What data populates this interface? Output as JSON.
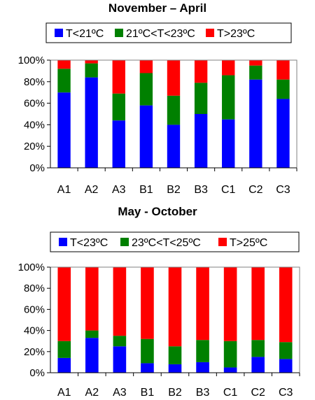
{
  "colors": {
    "low": "#0000ff",
    "mid": "#008000",
    "high": "#ff0000"
  },
  "chart_data": [
    {
      "type": "bar",
      "stacked": true,
      "title": "November – April",
      "categories": [
        "A1",
        "A2",
        "A3",
        "B1",
        "B2",
        "B3",
        "C1",
        "C2",
        "C3"
      ],
      "ylim": [
        0,
        100
      ],
      "yticks": [
        "0%",
        "20%",
        "40%",
        "60%",
        "80%",
        "100%"
      ],
      "legend_position": "top",
      "series": [
        {
          "name": "T<21ºC",
          "values": [
            70,
            84,
            44,
            58,
            40,
            50,
            45,
            82,
            64
          ]
        },
        {
          "name": "21ºC<T<23ºC",
          "values": [
            22,
            13,
            25,
            30,
            27,
            29,
            41,
            13,
            18
          ]
        },
        {
          "name": "T>23ºC",
          "values": [
            8,
            3,
            31,
            12,
            33,
            21,
            14,
            5,
            18
          ]
        }
      ]
    },
    {
      "type": "bar",
      "stacked": true,
      "title": "May - October",
      "categories": [
        "A1",
        "A2",
        "A3",
        "B1",
        "B2",
        "B3",
        "C1",
        "C2",
        "C3"
      ],
      "ylim": [
        0,
        100
      ],
      "yticks": [
        "0%",
        "20%",
        "40%",
        "60%",
        "80%",
        "100%"
      ],
      "legend_position": "top",
      "series": [
        {
          "name": "T<23ºC",
          "values": [
            14,
            33,
            25,
            9,
            8,
            10,
            5,
            15,
            13
          ]
        },
        {
          "name": "23ºC<T<25ºC",
          "values": [
            16,
            7,
            10,
            23,
            17,
            21,
            25,
            16,
            16
          ]
        },
        {
          "name": "T>25ºC",
          "values": [
            70,
            60,
            65,
            68,
            75,
            69,
            70,
            69,
            71
          ]
        }
      ]
    }
  ]
}
